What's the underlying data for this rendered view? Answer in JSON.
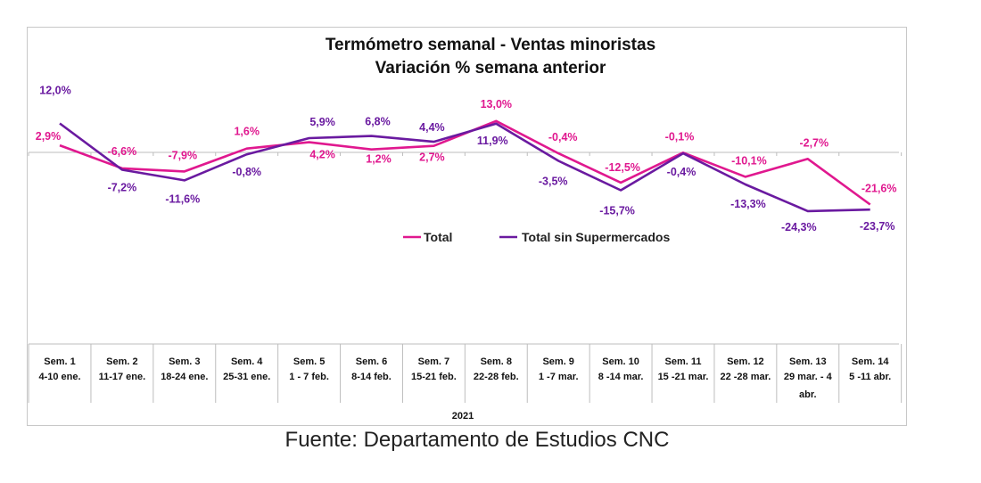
{
  "chart_data": {
    "type": "line",
    "title": "Termómetro semanal - Ventas minoristas",
    "subtitle": "Variación % semana anterior",
    "x_group_label": "2021",
    "categories": [
      [
        "Sem. 1",
        "4-10 ene."
      ],
      [
        "Sem. 2",
        "11-17 ene."
      ],
      [
        "Sem. 3",
        "18-24 ene."
      ],
      [
        "Sem. 4",
        "25-31 ene."
      ],
      [
        "Sem. 5",
        "1 - 7 feb."
      ],
      [
        "Sem. 6",
        "8-14 feb."
      ],
      [
        "Sem. 7",
        "15-21 feb."
      ],
      [
        "Sem. 8",
        "22-28 feb."
      ],
      [
        "Sem. 9",
        "1 -7 mar."
      ],
      [
        "Sem. 10",
        "8 -14 mar."
      ],
      [
        "Sem. 11",
        "15 -21 mar."
      ],
      [
        "Sem. 12",
        "22 -28 mar."
      ],
      [
        "Sem. 13",
        "29 mar. - 4",
        "abr."
      ],
      [
        "Sem. 14",
        "5 -11 abr."
      ]
    ],
    "series": [
      {
        "name": "Total",
        "color": "#e0188f",
        "values": [
          2.9,
          -6.6,
          -7.9,
          1.6,
          4.2,
          1.2,
          2.7,
          13.0,
          -0.4,
          -12.5,
          -0.1,
          -10.1,
          -2.7,
          -21.6
        ],
        "labels": [
          "2,9%",
          "-6,6%",
          "-7,9%",
          "1,6%",
          "4,2%",
          "1,2%",
          "2,7%",
          "13,0%",
          "-0,4%",
          "-12,5%",
          "-0,1%",
          "-10,1%",
          "-2,7%",
          "-21,6%"
        ]
      },
      {
        "name": "Total sin Supermercados",
        "color": "#6a1aa0",
        "values": [
          12.0,
          -7.2,
          -11.6,
          -0.8,
          5.9,
          6.8,
          4.4,
          11.9,
          -3.5,
          -15.7,
          -0.4,
          -13.3,
          -24.3,
          -23.7
        ],
        "labels": [
          "12,0%",
          "-7,2%",
          "-11,6%",
          "-0,8%",
          "5,9%",
          "6,8%",
          "4,4%",
          "11,9%",
          "-3,5%",
          "-15,7%",
          "-0,4%",
          "-13,3%",
          "-24,3%",
          "-23,7%"
        ]
      }
    ],
    "legend": "center",
    "grid": false
  },
  "source_text": "Fuente: Departamento de Estudios CNC"
}
